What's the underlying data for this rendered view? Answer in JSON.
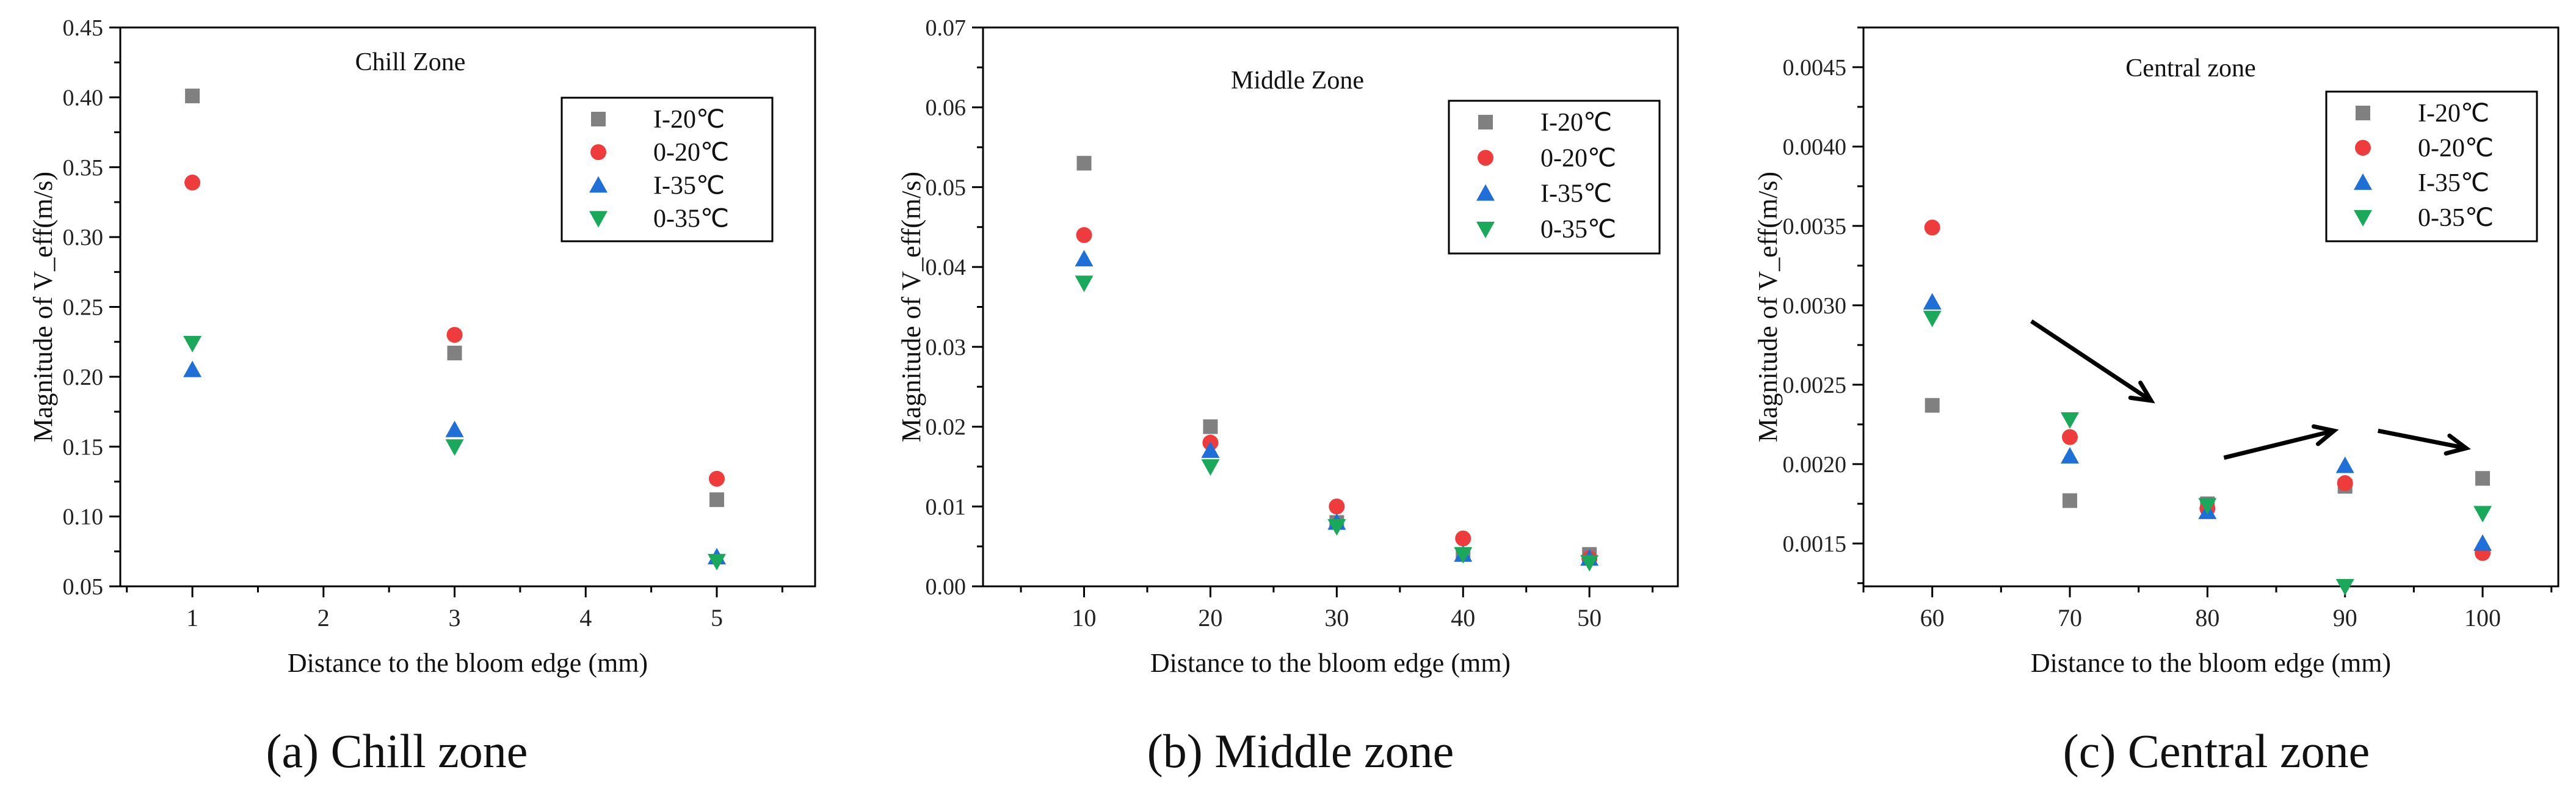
{
  "colors": {
    "I-20": "#808080",
    "0-20": "#ee3b3b",
    "I-35": "#1f6fd6",
    "0-35": "#1aa85a",
    "axis": "#000000",
    "arrow": "#000000"
  },
  "chart_data": [
    {
      "type": "scatter",
      "title": "Chill Zone",
      "xlabel": "Distance to the bloom edge (mm)",
      "ylabel": "Magnitude of V_eff(m/s)",
      "xlim": [
        0.45,
        5.75
      ],
      "ylim": [
        0.05,
        0.45
      ],
      "xticks": [
        1,
        2,
        3,
        4,
        5
      ],
      "xtick_labels": [
        "1",
        "2",
        "3",
        "4",
        "5"
      ],
      "yticks": [
        0.05,
        0.1,
        0.15,
        0.2,
        0.25,
        0.3,
        0.35,
        0.4,
        0.45
      ],
      "ytick_labels": [
        "0.05",
        "0.10",
        "0.15",
        "0.20",
        "0.25",
        "0.30",
        "0.35",
        "0.40",
        "0.45"
      ],
      "legend_position": "top-right",
      "series": [
        {
          "name": "I-20℃",
          "marker": "square",
          "x": [
            1,
            3,
            5
          ],
          "y": [
            0.401,
            0.217,
            0.112
          ]
        },
        {
          "name": "0-20℃",
          "marker": "circle",
          "x": [
            1,
            3,
            5
          ],
          "y": [
            0.339,
            0.23,
            0.127
          ]
        },
        {
          "name": "I-35℃",
          "marker": "triangle-up",
          "x": [
            1,
            3,
            5
          ],
          "y": [
            0.205,
            0.162,
            0.071
          ]
        },
        {
          "name": "0-35℃",
          "marker": "triangle-down",
          "x": [
            1,
            3,
            5
          ],
          "y": [
            0.224,
            0.15,
            0.068
          ]
        }
      ],
      "caption_letter": "(a)",
      "caption_text": "Chill zone"
    },
    {
      "type": "scatter",
      "title": "Middle Zone",
      "xlabel": "Distance to the bloom edge (mm)",
      "ylabel": "Magnitude of V_eff(m/s)",
      "xlim": [
        2,
        57
      ],
      "ylim": [
        0,
        0.07
      ],
      "xticks": [
        10,
        20,
        30,
        40,
        50
      ],
      "xtick_labels": [
        "10",
        "20",
        "30",
        "40",
        "50"
      ],
      "yticks": [
        0,
        0.01,
        0.02,
        0.03,
        0.04,
        0.05,
        0.06,
        0.07
      ],
      "ytick_labels": [
        "0.00",
        "0.01",
        "0.02",
        "0.03",
        "0.04",
        "0.05",
        "0.06",
        "0.07"
      ],
      "legend_position": "top-right",
      "series": [
        {
          "name": "I-20℃",
          "marker": "square",
          "x": [
            10,
            20,
            30,
            40,
            50
          ],
          "y": [
            0.053,
            0.02,
            0.008,
            0.004,
            0.004
          ]
        },
        {
          "name": "0-20℃",
          "marker": "circle",
          "x": [
            10,
            20,
            30,
            40,
            50
          ],
          "y": [
            0.044,
            0.018,
            0.01,
            0.006,
            0.0035
          ]
        },
        {
          "name": "I-35℃",
          "marker": "triangle-up",
          "x": [
            10,
            20,
            30,
            40,
            50
          ],
          "y": [
            0.041,
            0.017,
            0.008,
            0.004,
            0.0035
          ]
        },
        {
          "name": "0-35℃",
          "marker": "triangle-down",
          "x": [
            10,
            20,
            30,
            40,
            50
          ],
          "y": [
            0.038,
            0.015,
            0.0075,
            0.004,
            0.003
          ]
        }
      ],
      "caption_letter": "(b)",
      "caption_text": "Middle zone"
    },
    {
      "type": "scatter",
      "title": "Central zone",
      "xlabel": "Distance to the bloom edge (mm)",
      "ylabel": "Magnitude of V_eff(m/s)",
      "xlim": [
        55,
        105.5
      ],
      "ylim": [
        0.00123,
        0.00475
      ],
      "xticks": [
        60,
        70,
        80,
        90,
        100
      ],
      "xtick_labels": [
        "60",
        "70",
        "80",
        "90",
        "100"
      ],
      "yticks": [
        0.0015,
        0.002,
        0.0025,
        0.003,
        0.0035,
        0.004,
        0.0045
      ],
      "ytick_labels": [
        "0.0015",
        "0.0020",
        "0.0025",
        "0.0030",
        "0.0035",
        "0.0040",
        "0.0045"
      ],
      "legend_position": "top-right",
      "series": [
        {
          "name": "I-20℃",
          "marker": "square",
          "x": [
            60,
            70,
            80,
            90,
            100
          ],
          "y": [
            0.00237,
            0.00177,
            0.00175,
            0.00186,
            0.00191
          ]
        },
        {
          "name": "0-20℃",
          "marker": "circle",
          "x": [
            60,
            70,
            80,
            90,
            100
          ],
          "y": [
            0.00349,
            0.00217,
            0.00172,
            0.00188,
            0.00144
          ]
        },
        {
          "name": "I-35℃",
          "marker": "triangle-up",
          "x": [
            60,
            70,
            80,
            90,
            100
          ],
          "y": [
            0.00302,
            0.00205,
            0.0017,
            0.00199,
            0.0015
          ]
        },
        {
          "name": "0-35℃",
          "marker": "triangle-down",
          "x": [
            60,
            70,
            80,
            90,
            100
          ],
          "y": [
            0.00292,
            0.00228,
            0.00174,
            0.00123,
            0.00169
          ]
        }
      ],
      "annotations": [
        "arrow",
        "arrow",
        "arrow"
      ],
      "caption_letter": "(c)",
      "caption_text": "Central zone"
    }
  ]
}
